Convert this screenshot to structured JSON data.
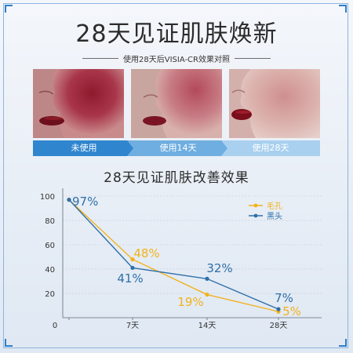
{
  "header": {
    "title": "28天见证肌肤焕新",
    "subtitle": "使用28天后VISIA-CR效果对照"
  },
  "stages": [
    "未使用",
    "使用14天",
    "使用28天"
  ],
  "colors": {
    "stage_dark": "#2f86cf",
    "stage_mid": "#6faee0",
    "stage_light": "#a9d0ef",
    "pores": "#f2b21c",
    "blackheads": "#2f6fa8",
    "axis": "#5d6a78"
  },
  "chart_data": {
    "type": "line",
    "title": "28天见证肌肤改善效果",
    "categories": [
      "0",
      "7天",
      "14天",
      "28天"
    ],
    "x": [
      0,
      7,
      14,
      28
    ],
    "ylim": [
      0,
      100
    ],
    "yticks": [
      "0",
      "20",
      "40",
      "60",
      "80",
      "100"
    ],
    "series": [
      {
        "name": "毛孔",
        "color": "#f2b21c",
        "values": [
          97,
          48,
          19,
          5
        ],
        "labels": [
          "97%",
          "48%",
          "19%",
          "5%"
        ]
      },
      {
        "name": "黑头",
        "color": "#2f6fa8",
        "values": [
          97,
          41,
          32,
          7
        ],
        "labels": [
          "",
          "41%",
          "32%",
          "7%"
        ]
      }
    ],
    "legend": "top-right",
    "grid": true
  }
}
